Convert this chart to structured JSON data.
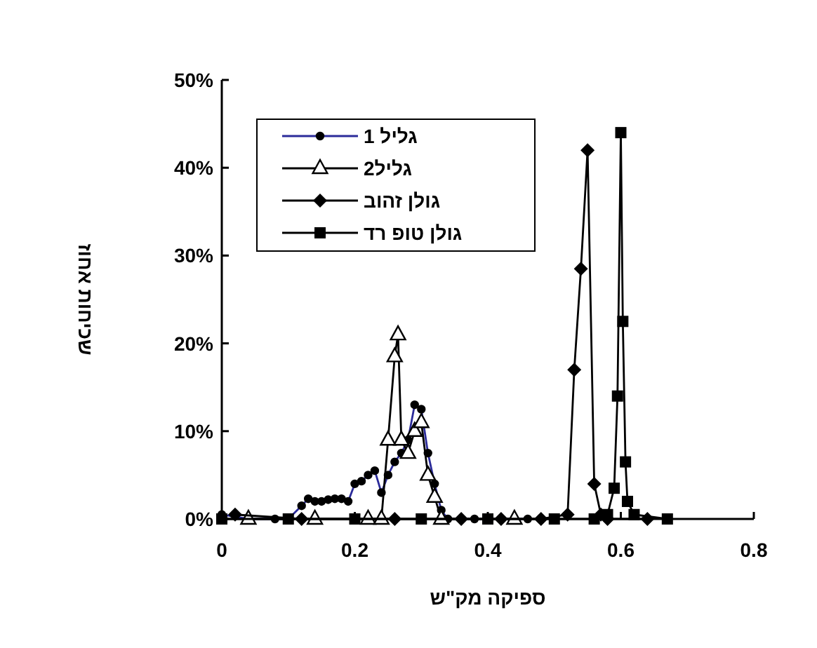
{
  "chart_data": {
    "type": "line",
    "xlabel": "ספיקה מק\"ש",
    "ylabel": "שכיחות אחוז",
    "xlim": [
      0,
      0.8
    ],
    "xticks": [
      0,
      0.2,
      0.4,
      0.6,
      0.8
    ],
    "ylim": [
      0,
      50
    ],
    "yticks": [
      {
        "value": 0,
        "label": "0%"
      },
      {
        "value": 10,
        "label": "10%"
      },
      {
        "value": 20,
        "label": "20%"
      },
      {
        "value": 30,
        "label": "30%"
      },
      {
        "value": 40,
        "label": "40%"
      },
      {
        "value": 50,
        "label": "50%"
      }
    ],
    "legend": "top left",
    "grid": false,
    "series": [
      {
        "name": "גליל 1",
        "color": "#2b2b9a",
        "marker": "circle",
        "x": [
          0,
          0.04,
          0.08,
          0.1,
          0.12,
          0.13,
          0.14,
          0.15,
          0.16,
          0.17,
          0.18,
          0.19,
          0.2,
          0.21,
          0.22,
          0.23,
          0.24,
          0.25,
          0.26,
          0.27,
          0.28,
          0.29,
          0.3,
          0.31,
          0.32,
          0.33,
          0.34,
          0.38,
          0.46
        ],
        "values": [
          0.5,
          0,
          0,
          0,
          1.5,
          2.3,
          2,
          2,
          2.2,
          2.3,
          2.3,
          2,
          4,
          4.3,
          5,
          5.5,
          3,
          5,
          6.5,
          7.5,
          9,
          13,
          12.5,
          7.5,
          4,
          1,
          0,
          0,
          0
        ]
      },
      {
        "name": "גליל2",
        "color": "#000000",
        "marker": "triangle",
        "x": [
          0.04,
          0.14,
          0.22,
          0.24,
          0.25,
          0.26,
          0.265,
          0.27,
          0.28,
          0.29,
          0.3,
          0.31,
          0.32,
          0.33,
          0.44
        ],
        "values": [
          0,
          0,
          0,
          0,
          9,
          18.5,
          21,
          9,
          7.5,
          10,
          11,
          5,
          2.5,
          0,
          0
        ]
      },
      {
        "name": "גולן זהוב",
        "color": "#000000",
        "marker": "diamond",
        "x": [
          0.02,
          0.12,
          0.26,
          0.36,
          0.42,
          0.48,
          0.52,
          0.53,
          0.54,
          0.55,
          0.56,
          0.57,
          0.58,
          0.64
        ],
        "values": [
          0.5,
          0,
          0,
          0,
          0,
          0,
          0.5,
          17,
          28.5,
          42,
          4,
          0.5,
          0,
          0
        ]
      },
      {
        "name": "גולן טופ רד",
        "color": "#000000",
        "marker": "square",
        "x": [
          0,
          0.1,
          0.2,
          0.3,
          0.4,
          0.5,
          0.56,
          0.58,
          0.59,
          0.595,
          0.6,
          0.603,
          0.607,
          0.61,
          0.62,
          0.67
        ],
        "values": [
          0,
          0,
          0,
          0,
          0,
          0,
          0,
          0.5,
          3.5,
          14,
          44,
          22.5,
          6.5,
          2,
          0.5,
          0
        ]
      }
    ]
  }
}
